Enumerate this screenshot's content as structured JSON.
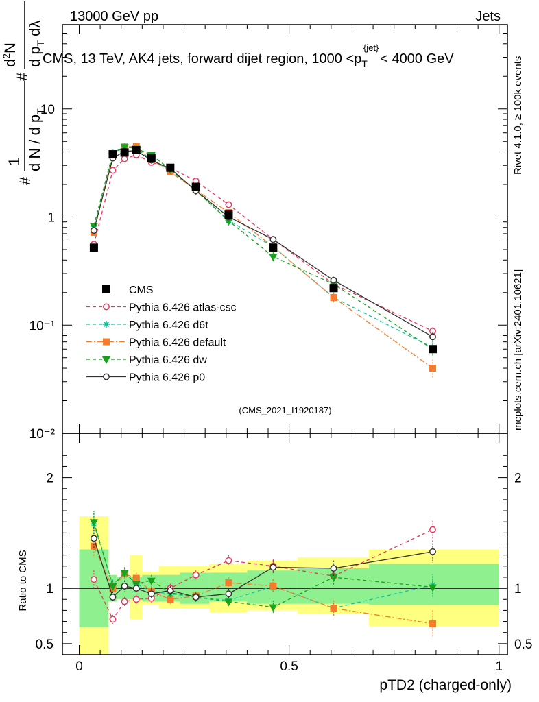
{
  "header": {
    "left": "13000 GeV pp",
    "right": "Jets"
  },
  "main_title": {
    "prefix": "CMS, 13 TeV, AK4 jets, forward dijet region, 1000 <p",
    "sub": "T",
    "sup": "{jet}",
    "suffix": "< 4000 GeV"
  },
  "side_text": {
    "rivet": "Rivet 4.1.0, ≥ 100k events",
    "mcplots": "mcplots.cern.ch [arXiv:2401.10621]"
  },
  "watermark": "(CMS_2021_I1920187)",
  "ylabel_main": {
    "hash": "#",
    "one": "1",
    "denominator": "d N / d p",
    "denominator_sub": "T",
    "hash2": "#",
    "numerator": "d",
    "numerator_sup": "2",
    "numerator_N": "N",
    "numerator_dp": "d p",
    "numerator_dp_sub": "T",
    "numerator_dlambda": "dλ"
  },
  "ylabel_ratio": "Ratio to CMS",
  "xlabel": "pTD2 (charged-only)",
  "chart_data": {
    "type": "line",
    "title": "CMS, 13 TeV, AK4 jets, forward dijet region, 1000 < p_T^{jet} < 4000 GeV",
    "xlabel": "pTD2 (charged-only)",
    "ylabel": "1/(dN/dp_T) d²N/(dp_T dλ)",
    "xlim": [
      -0.04,
      1.02
    ],
    "ylim": [
      0.01,
      60
    ],
    "yscale": "log",
    "x_ticks": [
      "0",
      "0.5",
      "1"
    ],
    "y_ticks": [
      "10⁻²",
      "10⁻¹",
      "1",
      "10"
    ],
    "ratio_ylim": [
      0.4,
      2.4
    ],
    "ratio_ticks": [
      "0.5",
      "1",
      "2"
    ],
    "legend_position": "center-left",
    "x": [
      0.035,
      0.08,
      0.108,
      0.136,
      0.172,
      0.217,
      0.278,
      0.356,
      0.462,
      0.606,
      0.842
    ],
    "bin_edges": [
      0.0,
      0.07,
      0.09,
      0.12,
      0.15,
      0.19,
      0.24,
      0.31,
      0.4,
      0.52,
      0.69,
      1.0
    ],
    "data": {
      "name": "CMS",
      "values": [
        0.52,
        3.8,
        3.95,
        4.15,
        3.5,
        2.85,
        1.9,
        1.05,
        0.52,
        0.22,
        0.06
      ],
      "stat_band": [
        [
          0.65,
          1.35
        ],
        [
          0.88,
          1.12
        ],
        [
          0.9,
          1.1
        ],
        [
          0.9,
          1.1
        ],
        [
          0.88,
          1.12
        ],
        [
          0.88,
          1.12
        ],
        [
          0.86,
          1.14
        ],
        [
          0.88,
          1.14
        ],
        [
          0.86,
          1.16
        ],
        [
          0.86,
          1.18
        ],
        [
          0.85,
          1.22
        ]
      ],
      "syst_band": [
        [
          0.4,
          1.65
        ],
        [
          0.88,
          1.12
        ],
        [
          0.92,
          1.1
        ],
        [
          0.72,
          1.3
        ],
        [
          0.85,
          1.15
        ],
        [
          0.82,
          1.2
        ],
        [
          0.82,
          1.2
        ],
        [
          0.78,
          1.22
        ],
        [
          0.8,
          1.25
        ],
        [
          0.77,
          1.28
        ],
        [
          0.66,
          1.35
        ]
      ]
    },
    "series": [
      {
        "name": "Pythia 6.426 atlas-csc",
        "color": "#e8365d",
        "marker": "open-circle",
        "dash": "5,4",
        "values": [
          0.56,
          2.7,
          3.45,
          3.75,
          3.2,
          2.85,
          2.15,
          1.3,
          0.62,
          0.24,
          0.088
        ],
        "errors": [
          0.04,
          0.15,
          0.15,
          0.15,
          0.15,
          0.12,
          0.1,
          0.06,
          0.04,
          0.02,
          0.008
        ]
      },
      {
        "name": "Pythia 6.426 d6t",
        "color": "#17bf9a",
        "marker": "star",
        "dash": "5,4",
        "values": [
          0.82,
          3.9,
          4.5,
          4.3,
          3.4,
          2.7,
          1.75,
          0.93,
          0.53,
          0.18,
          0.062
        ],
        "errors": [
          0.05,
          0.2,
          0.2,
          0.2,
          0.15,
          0.12,
          0.1,
          0.06,
          0.04,
          0.02,
          0.008
        ]
      },
      {
        "name": "Pythia 6.426 default",
        "color": "#f57c2c",
        "marker": "square",
        "dash": "8,3,2,3",
        "values": [
          0.72,
          3.8,
          4.45,
          4.5,
          3.4,
          2.6,
          1.78,
          1.1,
          0.53,
          0.18,
          0.04
        ],
        "errors": [
          0.05,
          0.2,
          0.2,
          0.2,
          0.15,
          0.12,
          0.1,
          0.06,
          0.04,
          0.02,
          0.008
        ]
      },
      {
        "name": "Pythia 6.426 dw",
        "color": "#17a31b",
        "marker": "down-triangle",
        "dash": "5,4",
        "values": [
          0.83,
          3.85,
          4.45,
          4.3,
          3.75,
          2.75,
          1.75,
          0.92,
          0.43,
          0.24,
          0.06
        ],
        "errors": [
          0.05,
          0.2,
          0.2,
          0.2,
          0.15,
          0.12,
          0.1,
          0.06,
          0.04,
          0.02,
          0.008
        ]
      },
      {
        "name": "Pythia 6.426 p0",
        "color": "#333333",
        "marker": "open-circle",
        "dash": "none",
        "values": [
          0.75,
          3.5,
          4.05,
          4.1,
          3.35,
          2.8,
          1.75,
          1.0,
          0.62,
          0.26,
          0.078
        ],
        "errors": [
          0.05,
          0.2,
          0.2,
          0.2,
          0.15,
          0.12,
          0.1,
          0.06,
          0.04,
          0.02,
          0.008
        ]
      }
    ],
    "ratios": [
      {
        "name": "Pythia 6.426 atlas-csc",
        "values": [
          1.08,
          0.72,
          0.88,
          0.9,
          0.91,
          1.0,
          1.12,
          1.25,
          1.2,
          1.11,
          1.53
        ],
        "errors": [
          0.08,
          0.04,
          0.04,
          0.04,
          0.04,
          0.04,
          0.04,
          0.05,
          0.06,
          0.06,
          0.08
        ]
      },
      {
        "name": "Pythia 6.426 d6t",
        "values": [
          1.58,
          1.03,
          1.14,
          1.04,
          0.97,
          0.95,
          0.92,
          0.89,
          1.02,
          0.82,
          1.03
        ],
        "errors": [
          0.1,
          0.05,
          0.05,
          0.05,
          0.05,
          0.04,
          0.04,
          0.05,
          0.06,
          0.07,
          0.1
        ]
      },
      {
        "name": "Pythia 6.426 default",
        "values": [
          1.38,
          1.0,
          1.13,
          1.09,
          0.97,
          0.9,
          0.93,
          1.05,
          1.02,
          0.82,
          0.68
        ],
        "errors": [
          0.1,
          0.05,
          0.05,
          0.05,
          0.05,
          0.04,
          0.04,
          0.05,
          0.06,
          0.07,
          0.12
        ]
      },
      {
        "name": "Pythia 6.426 dw",
        "values": [
          1.6,
          1.02,
          1.14,
          1.04,
          1.07,
          0.96,
          0.92,
          0.88,
          0.83,
          1.1,
          1.01
        ],
        "errors": [
          0.1,
          0.05,
          0.05,
          0.05,
          0.05,
          0.04,
          0.04,
          0.05,
          0.06,
          0.07,
          0.1
        ]
      },
      {
        "name": "Pythia 6.426 p0",
        "values": [
          1.45,
          0.92,
          1.02,
          1.0,
          0.95,
          0.98,
          0.92,
          0.95,
          1.19,
          1.18,
          1.33
        ],
        "errors": [
          0.1,
          0.05,
          0.05,
          0.05,
          0.05,
          0.04,
          0.04,
          0.05,
          0.06,
          0.07,
          0.1
        ]
      }
    ]
  }
}
